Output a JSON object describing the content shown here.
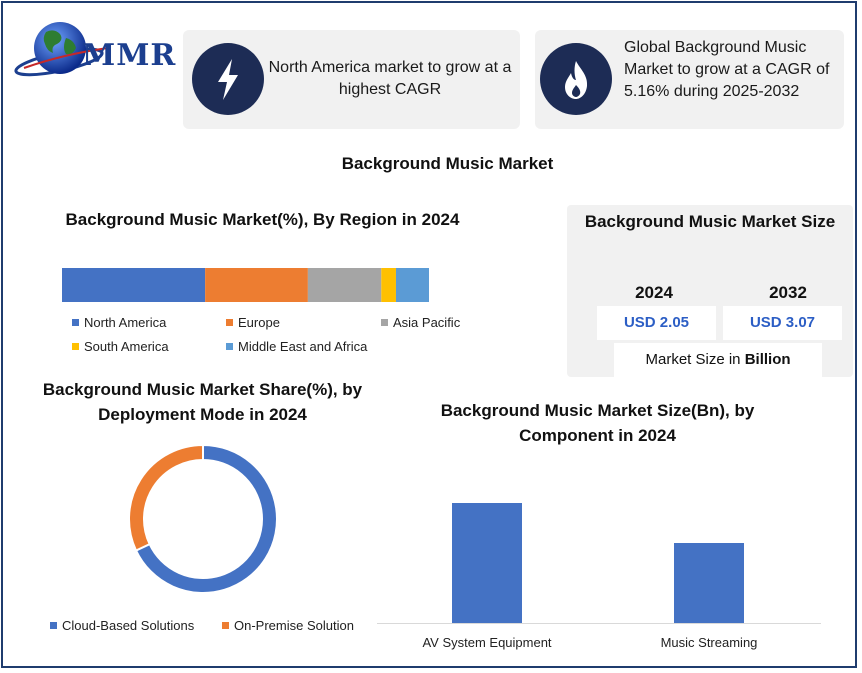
{
  "brand": {
    "name": "MMR"
  },
  "cards": [
    {
      "icon": "lightning-bolt-icon",
      "text": "North America market to grow at a highest CAGR"
    },
    {
      "icon": "flame-icon",
      "text": "Global Background Music Market to grow at a CAGR of 5.16% during 2025-2032"
    }
  ],
  "main_title": "Background Music Market",
  "market_size": {
    "title": "Background Music Market Size",
    "years": [
      "2024",
      "2032"
    ],
    "values": [
      "USD 2.05",
      "USD 3.07"
    ],
    "unit_prefix": "Market Size in ",
    "unit_bold": "Billion"
  },
  "colors": {
    "blue": "#4472c4",
    "orange": "#ed7d31",
    "gray": "#a5a5a5",
    "yellow": "#ffc000",
    "lightblue": "#5b9bd5",
    "navy": "#1d2c55"
  },
  "chart_data": [
    {
      "type": "bar",
      "orientation": "horizontal-stacked",
      "title": "Background Music Market(%), By Region in 2024",
      "categories": [
        "North America",
        "Europe",
        "Asia Pacific",
        "South America",
        "Middle East and Africa"
      ],
      "values": [
        39,
        28,
        20,
        4,
        9
      ],
      "colors": [
        "#4472c4",
        "#ed7d31",
        "#a5a5a5",
        "#ffc000",
        "#5b9bd5"
      ],
      "legend": "bottom"
    },
    {
      "type": "pie",
      "variant": "donut",
      "title": "Background Music Market Share(%), by Deployment Mode in 2024",
      "categories": [
        "Cloud-Based Solutions",
        "On-Premise Solution"
      ],
      "values": [
        68,
        32
      ],
      "colors": [
        "#4472c4",
        "#ed7d31"
      ],
      "legend": "bottom"
    },
    {
      "type": "bar",
      "title": "Background Music Market Size(Bn), by Component in 2024",
      "categories": [
        "AV System Equipment",
        "Music Streaming"
      ],
      "values": [
        1.2,
        0.8
      ],
      "ylim": [
        0,
        1.5
      ],
      "color": "#4472c4",
      "grid": false
    }
  ]
}
